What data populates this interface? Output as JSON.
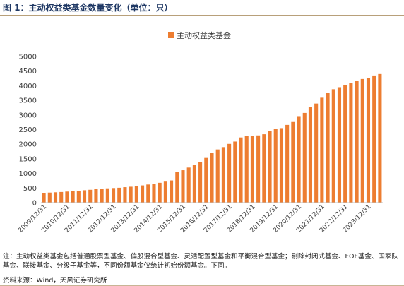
{
  "figure": {
    "title": "图 1：主动权益类基金数量变化（单位：只）",
    "note": "注：主动权益类基金包括普通股票型基金、偏股混合型基金、灵活配置型基金和平衡混合型基金；剔除封闭式基金、FOF基金、国家队基金、联接基金、分级子基金等，不同份额基金仅统计初始份额基金。下同。",
    "source": "资料来源：Wind，天风证券研究所"
  },
  "colors": {
    "bar": "#ed7d31",
    "axis": "#bfbfbf",
    "title": "#1f3864"
  },
  "chart_data": {
    "type": "bar",
    "title": "",
    "xlabel": "",
    "ylabel": "",
    "ylim": [
      0,
      5000
    ],
    "yticks": [
      0,
      500,
      1000,
      1500,
      2000,
      2500,
      3000,
      3500,
      4000,
      4500,
      5000
    ],
    "grid": false,
    "legend": "top-center",
    "series": [
      {
        "name": "主动权益类基金",
        "values": [
          330,
          345,
          355,
          365,
          380,
          395,
          410,
          425,
          440,
          460,
          475,
          490,
          500,
          510,
          530,
          545,
          565,
          590,
          620,
          650,
          680,
          720,
          760,
          1050,
          1110,
          1200,
          1280,
          1380,
          1530,
          1700,
          1820,
          1900,
          2010,
          2090,
          2230,
          2280,
          2290,
          2300,
          2340,
          2450,
          2530,
          2550,
          2660,
          2760,
          2960,
          3070,
          3270,
          3390,
          3590,
          3760,
          3880,
          3950,
          4030,
          4100,
          4160,
          4230,
          4270,
          4350,
          4400
        ]
      }
    ],
    "tick_labels": [
      "2009/12/31",
      "2010/12/31",
      "2011/12/31",
      "2012/12/31",
      "2013/12/31",
      "2014/12/31",
      "2015/12/31",
      "2016/12/31",
      "2017/12/31",
      "2018/12/31",
      "2019/12/31",
      "2020/12/31",
      "2021/12/31",
      "2022/12/31",
      "2023/12/31"
    ],
    "tick_positions": [
      0,
      4,
      8,
      12,
      16,
      20,
      24,
      28,
      32,
      36,
      40,
      44,
      48,
      52,
      56
    ]
  }
}
